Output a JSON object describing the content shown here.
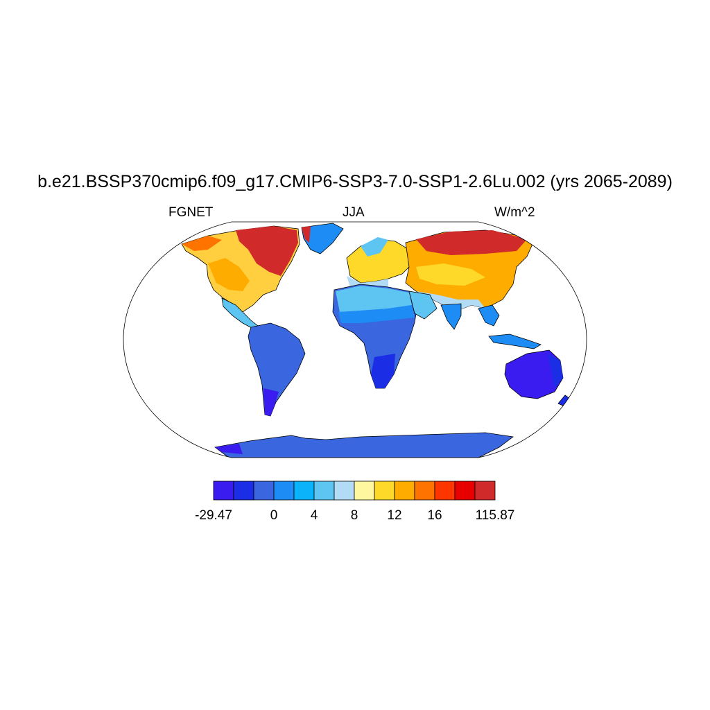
{
  "title": "b.e21.BSSP370cmip6.f09_g17.CMIP6-SSP3-7.0-SSP1-2.6Lu.002 (yrs 2065-2089)",
  "left_label": "FGNET",
  "center_label": "JJA",
  "right_label": "W/m^2",
  "colorbar": {
    "colors": [
      "#3a1cf0",
      "#1b2ee6",
      "#3a66df",
      "#1e8cf5",
      "#0bb4fa",
      "#5ec4f2",
      "#b2dcf5",
      "#fff7a0",
      "#ffd92a",
      "#ffac00",
      "#ff7400",
      "#ff3500",
      "#e80000",
      "#d12a2a"
    ],
    "labels": [
      "-29.47",
      "0",
      "4",
      "8",
      "12",
      "16",
      "115.87"
    ]
  }
}
